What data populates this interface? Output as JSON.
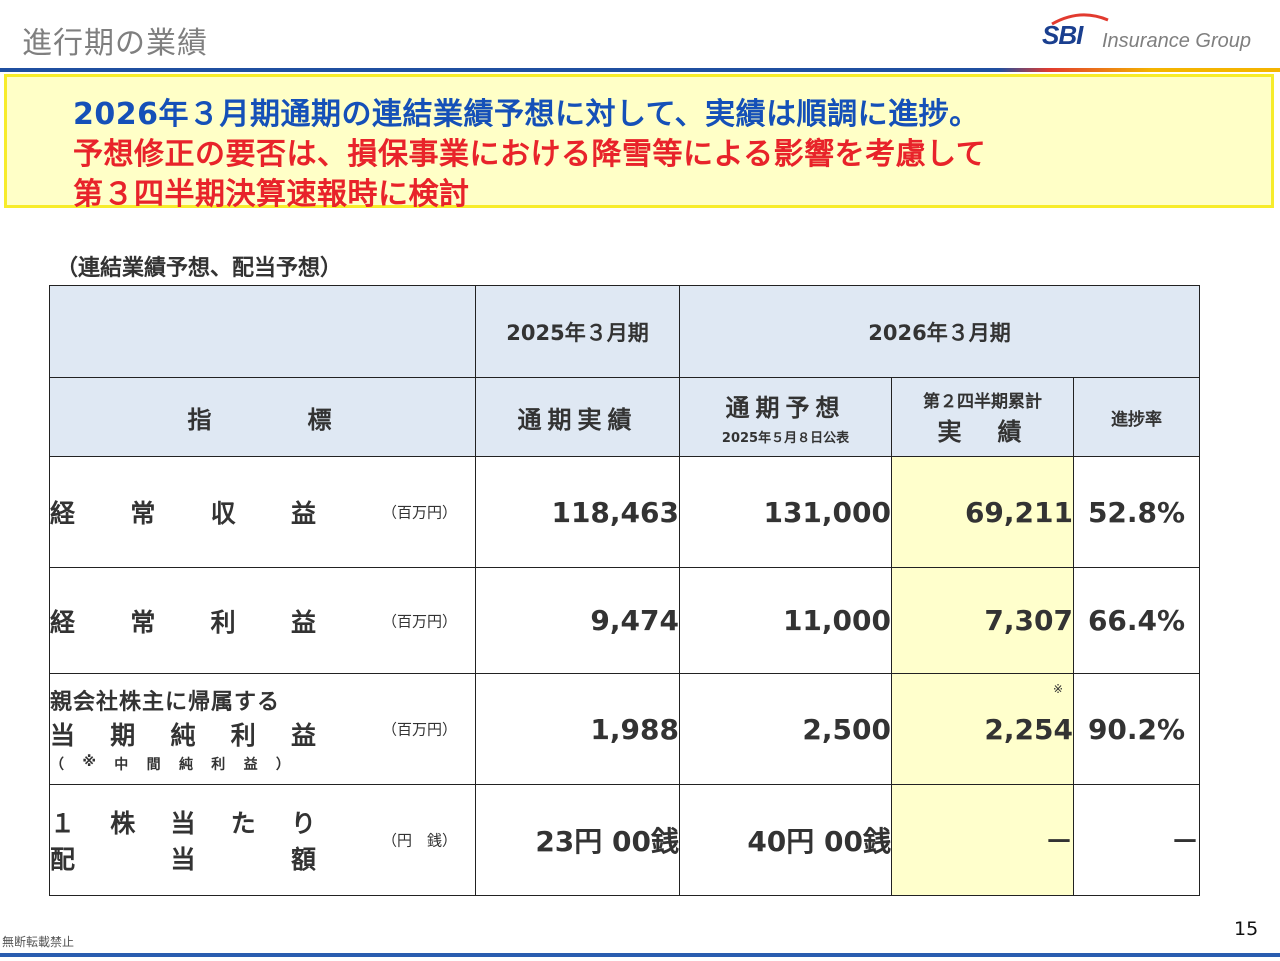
{
  "slide": {
    "title": "進行期の業績",
    "page_number": "15",
    "footer_note": "無断転載禁止"
  },
  "logo": {
    "mark": "SBI",
    "text": "Insurance Group"
  },
  "callout": {
    "line1": "2026年３月期通期の連結業績予想に対して、実績は順調に進捗。",
    "line2": "予想修正の要否は、損保事業における降雪等による影響を考慮して",
    "line3": "第３四半期決算速報時に検討"
  },
  "table": {
    "caption": "（連結業績予想、配当予想）",
    "header": {
      "fy2025": "2025年３月期",
      "fy2026": "2026年３月期",
      "indicator": "指　　　標",
      "full_year_actual": "通期実績",
      "full_year_forecast": "通期予想",
      "forecast_date": "2025年５月８日公表",
      "q2_cumulative": "第２四半期累計",
      "actual": "実　績",
      "progress_rate": "進捗率"
    },
    "rows": [
      {
        "label_chars": [
          "経",
          "常",
          "収",
          "益"
        ],
        "unit": "（百万円）",
        "fy2025": "118,463",
        "forecast": "131,000",
        "q2": "69,211",
        "rate": "52.8%"
      },
      {
        "label_chars": [
          "経",
          "常",
          "利",
          "益"
        ],
        "unit": "（百万円）",
        "fy2025": "9,474",
        "forecast": "11,000",
        "q2": "7,307",
        "rate": "66.4%"
      },
      {
        "label_line1": "親会社株主に帰属する",
        "label_chars": [
          "当",
          "期",
          "純",
          "利",
          "益"
        ],
        "label_note_chars": [
          "（",
          "※",
          "中",
          "間",
          "純",
          "利",
          "益",
          "）"
        ],
        "unit": "（百万円）",
        "fy2025": "1,988",
        "forecast": "2,500",
        "q2_note": "※",
        "q2": "2,254",
        "rate": "90.2%"
      },
      {
        "label_chars": [
          "１",
          "株",
          "当",
          "た",
          "り"
        ],
        "label_chars2": [
          "配",
          "当",
          "額"
        ],
        "unit": "（円　銭）",
        "fy2025": "23円 00銭",
        "forecast": "40円 00銭",
        "q2": "－",
        "rate": "－"
      }
    ]
  },
  "colors": {
    "title_gray": "#7f7f7f",
    "blue_text": "#1550b8",
    "red_text": "#e8232a",
    "callout_bg": "#ffffc7",
    "header_bg": "#dfe8f3",
    "highlight_bg": "#ffffcc"
  }
}
